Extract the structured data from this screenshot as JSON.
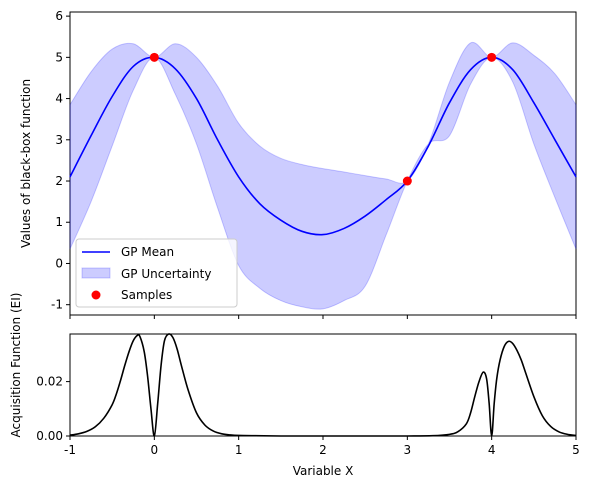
{
  "chart_data": [
    {
      "type": "line",
      "xlim": [
        -1,
        5
      ],
      "ylim": [
        -1.25,
        6.1
      ],
      "ylabel": "Values of black-box function",
      "xticks": [
        -1,
        0,
        1,
        2,
        3,
        4,
        5
      ],
      "yticks": [
        -1,
        0,
        1,
        2,
        3,
        4,
        5,
        6
      ],
      "legend_position": "lower-left",
      "grid": false,
      "series": [
        {
          "name": "GP Mean",
          "kind": "line",
          "color": "#0000ff",
          "x": [
            -1.0,
            -0.75,
            -0.5,
            -0.25,
            0.0,
            0.25,
            0.5,
            0.75,
            1.0,
            1.25,
            1.5,
            1.75,
            2.0,
            2.25,
            2.5,
            2.75,
            3.0,
            3.25,
            3.5,
            3.75,
            4.0,
            4.25,
            4.5,
            4.75,
            5.0
          ],
          "y": [
            2.1,
            3.1,
            4.05,
            4.78,
            5.0,
            4.72,
            4.0,
            3.0,
            2.1,
            1.45,
            1.05,
            0.78,
            0.7,
            0.85,
            1.15,
            1.55,
            2.0,
            2.85,
            3.9,
            4.7,
            5.0,
            4.7,
            3.9,
            3.0,
            2.1
          ]
        },
        {
          "name": "GP Uncertainty",
          "kind": "band",
          "color": "#0000ff",
          "opacity": 0.2,
          "x": [
            -1.0,
            -0.75,
            -0.5,
            -0.25,
            0.0,
            0.25,
            0.5,
            0.75,
            1.0,
            1.25,
            1.5,
            1.75,
            2.0,
            2.25,
            2.5,
            2.75,
            3.0,
            3.25,
            3.5,
            3.75,
            4.0,
            4.25,
            4.5,
            4.75,
            5.0
          ],
          "upper": [
            3.85,
            4.65,
            5.2,
            5.33,
            5.0,
            5.33,
            5.0,
            4.3,
            3.4,
            2.85,
            2.55,
            2.4,
            2.3,
            2.22,
            2.13,
            2.05,
            2.0,
            2.9,
            4.4,
            5.35,
            5.0,
            5.35,
            5.05,
            4.6,
            3.85
          ],
          "lower": [
            0.35,
            1.5,
            2.85,
            4.2,
            5.0,
            4.1,
            2.9,
            1.35,
            -0.05,
            -0.6,
            -0.9,
            -1.05,
            -1.1,
            -0.9,
            -0.55,
            0.7,
            2.0,
            2.9,
            3.1,
            4.35,
            5.0,
            4.4,
            2.9,
            1.6,
            0.35
          ]
        },
        {
          "name": "Samples",
          "kind": "scatter",
          "color": "#ff0000",
          "x": [
            0,
            3,
            4
          ],
          "y": [
            5,
            2,
            5
          ]
        }
      ]
    },
    {
      "type": "line",
      "xlim": [
        -1,
        5
      ],
      "ylim": [
        0,
        0.0375
      ],
      "xlabel": "Variable X",
      "ylabel": "Acquisition Function (EI)",
      "xticks": [
        -1,
        0,
        1,
        2,
        3,
        4,
        5
      ],
      "yticks": [
        0.0,
        0.02
      ],
      "ytick_labels": [
        "0.00",
        "0.02"
      ],
      "grid": false,
      "series": [
        {
          "kind": "line",
          "color": "#000000",
          "x": [
            -1.0,
            -0.9,
            -0.8,
            -0.7,
            -0.6,
            -0.5,
            -0.45,
            -0.4,
            -0.35,
            -0.3,
            -0.25,
            -0.2,
            -0.17,
            -0.12,
            -0.08,
            -0.04,
            0.0,
            0.04,
            0.08,
            0.12,
            0.17,
            0.22,
            0.27,
            0.32,
            0.4,
            0.5,
            0.6,
            0.7,
            0.8,
            0.9,
            1.0,
            1.2,
            1.5,
            2.0,
            2.5,
            3.0,
            3.3,
            3.5,
            3.6,
            3.7,
            3.75,
            3.8,
            3.85,
            3.9,
            3.94,
            3.97,
            4.0,
            4.03,
            4.06,
            4.1,
            4.15,
            4.2,
            4.25,
            4.3,
            4.35,
            4.4,
            4.5,
            4.6,
            4.7,
            4.8,
            4.9,
            5.0
          ],
          "y": [
            0.0003,
            0.0008,
            0.0017,
            0.0034,
            0.0065,
            0.0115,
            0.0155,
            0.0205,
            0.026,
            0.031,
            0.035,
            0.037,
            0.0365,
            0.031,
            0.022,
            0.01,
            0.0,
            0.012,
            0.026,
            0.035,
            0.0375,
            0.0362,
            0.032,
            0.026,
            0.017,
            0.0085,
            0.004,
            0.0018,
            0.0008,
            0.0004,
            0.0002,
            0.0001,
            0.0,
            0.0,
            0.0,
            0.0,
            0.0001,
            0.0006,
            0.0016,
            0.0045,
            0.0085,
            0.0145,
            0.02,
            0.0235,
            0.021,
            0.012,
            0.0,
            0.012,
            0.021,
            0.028,
            0.033,
            0.0348,
            0.034,
            0.0315,
            0.028,
            0.0235,
            0.0145,
            0.0075,
            0.0035,
            0.0015,
            0.0006,
            0.0002
          ]
        }
      ]
    }
  ]
}
